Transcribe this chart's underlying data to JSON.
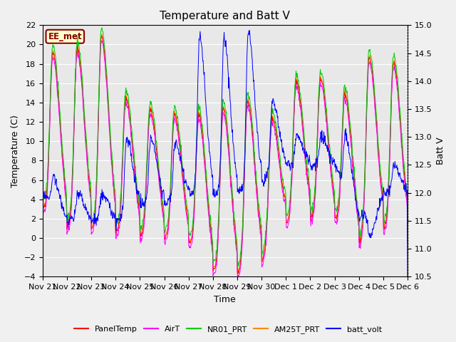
{
  "title": "Temperature and Batt V",
  "xlabel": "Time",
  "ylabel_left": "Temperature (C)",
  "ylabel_right": "Batt V",
  "ylim_left": [
    -4,
    22
  ],
  "ylim_right": [
    10.5,
    15.0
  ],
  "yticks_left": [
    -4,
    -2,
    0,
    2,
    4,
    6,
    8,
    10,
    12,
    14,
    16,
    18,
    20,
    22
  ],
  "yticks_right": [
    10.5,
    11.0,
    11.5,
    12.0,
    12.5,
    13.0,
    13.5,
    14.0,
    14.5,
    15.0
  ],
  "xtick_labels": [
    "Nov 21",
    "Nov 22",
    "Nov 23",
    "Nov 24",
    "Nov 25",
    "Nov 26",
    "Nov 27",
    "Nov 28",
    "Nov 29",
    "Nov 30",
    "Dec 1",
    "Dec 2",
    "Dec 3",
    "Dec 4",
    "Dec 5",
    "Dec 6"
  ],
  "annotation_text": "EE_met",
  "annotation_bg": "#ffffcc",
  "annotation_border": "#8b0000",
  "annotation_text_color": "#8b0000",
  "colors": {
    "PanelTemp": "#ff0000",
    "AirT": "#ff00ff",
    "NR01_PRT": "#00cc00",
    "AM25T_PRT": "#ff8800",
    "batt_volt": "#0000ff"
  },
  "legend_labels": [
    "PanelTemp",
    "AirT",
    "NR01_PRT",
    "AM25T_PRT",
    "batt_volt"
  ],
  "fig_bg": "#f0f0f0",
  "plot_bg": "#e8e8e8",
  "grid_color": "#ffffff",
  "n_points": 960
}
